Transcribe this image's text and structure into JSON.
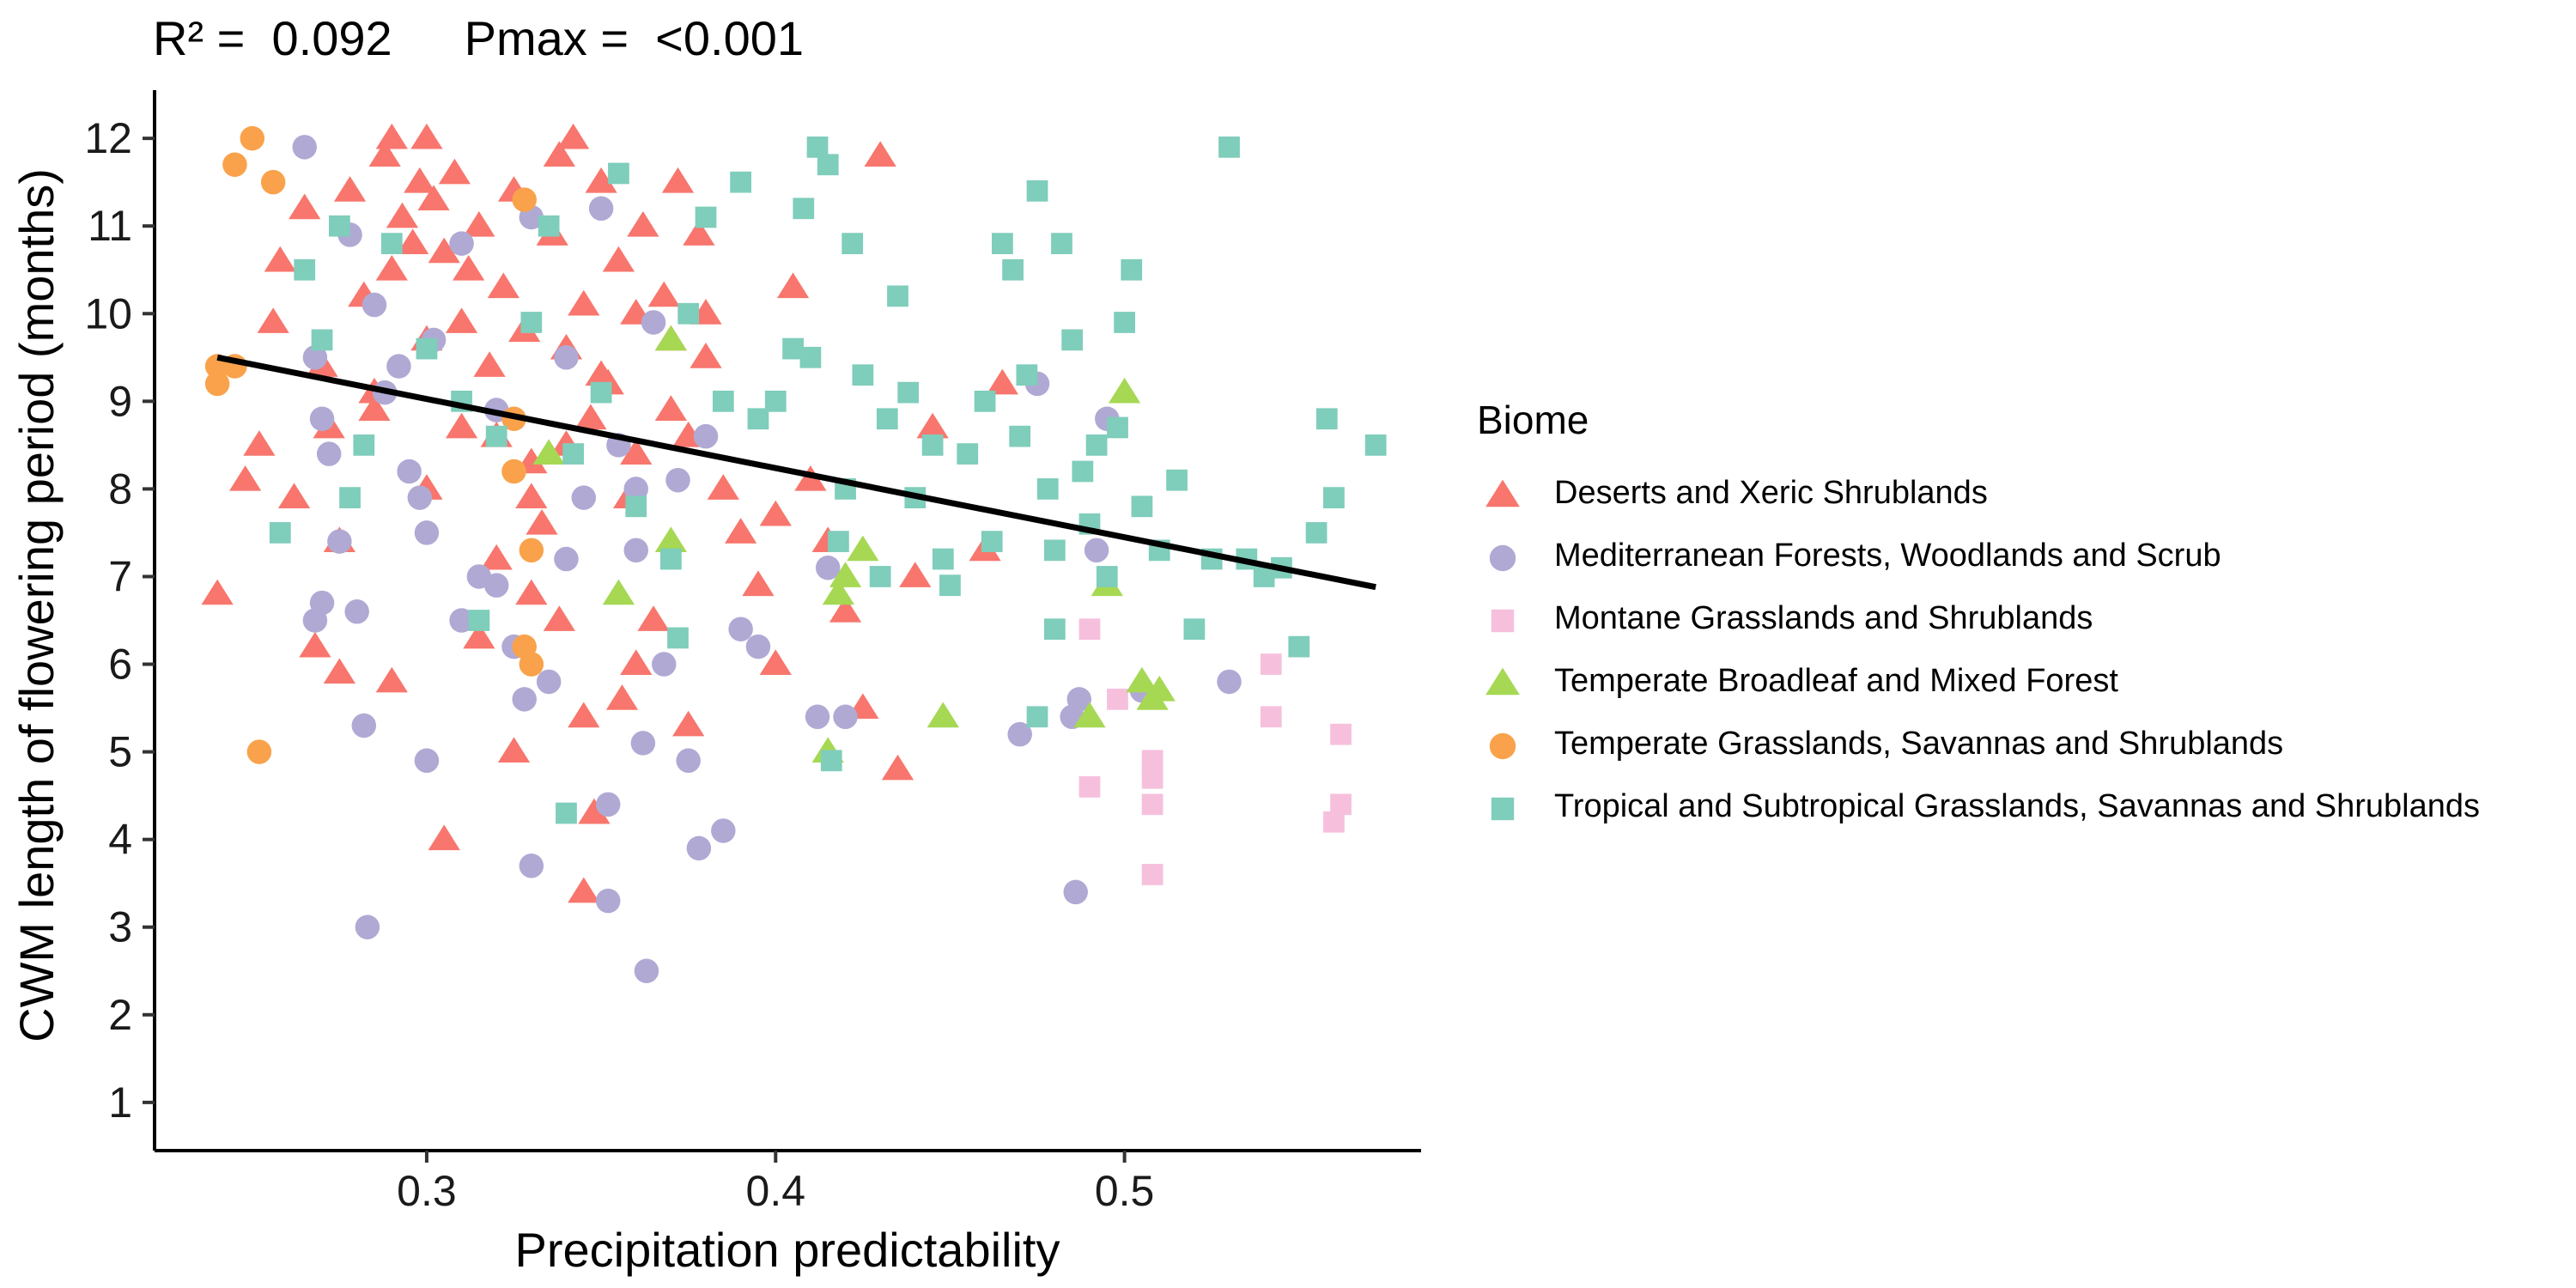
{
  "stats": {
    "r2_label": "R² =",
    "r2_value": "0.092",
    "pmax_label": "Pmax =",
    "pmax_value": "<0.001"
  },
  "chart_data": {
    "type": "scatter",
    "title": "",
    "xlabel": "Precipitation predictability",
    "ylabel": "CWM length of flowering period (months)",
    "xlim": [
      0.222,
      0.585
    ],
    "ylim": [
      0.45,
      12.55
    ],
    "x_ticks": [
      0.3,
      0.4,
      0.5
    ],
    "x_tick_labels": [
      "0.3",
      "0.4",
      "0.5"
    ],
    "y_ticks": [
      1,
      2,
      3,
      4,
      5,
      6,
      7,
      8,
      9,
      10,
      11,
      12
    ],
    "y_tick_labels": [
      "1",
      "2",
      "3",
      "4",
      "5",
      "6",
      "7",
      "8",
      "9",
      "10",
      "11",
      "12"
    ],
    "grid": false,
    "legend_title": "Biome",
    "legend_position": "right",
    "fit_line": {
      "x": [
        0.24,
        0.572
      ],
      "y": [
        9.5,
        6.88
      ],
      "color": "#000000"
    },
    "series": [
      {
        "name": "Deserts and Xeric Shrublands",
        "marker": "triangle",
        "color": "#F8766D",
        "points": [
          [
            0.24,
            6.8
          ],
          [
            0.248,
            8.1
          ],
          [
            0.252,
            8.5
          ],
          [
            0.256,
            9.9
          ],
          [
            0.258,
            10.6
          ],
          [
            0.262,
            7.9
          ],
          [
            0.265,
            11.2
          ],
          [
            0.27,
            9.4
          ],
          [
            0.272,
            8.7
          ],
          [
            0.275,
            7.4
          ],
          [
            0.278,
            11.4
          ],
          [
            0.282,
            10.2
          ],
          [
            0.285,
            9.1
          ],
          [
            0.288,
            11.8
          ],
          [
            0.29,
            12.0
          ],
          [
            0.293,
            11.1
          ],
          [
            0.296,
            10.8
          ],
          [
            0.298,
            11.5
          ],
          [
            0.3,
            12.0
          ],
          [
            0.302,
            11.3
          ],
          [
            0.305,
            10.7
          ],
          [
            0.308,
            11.6
          ],
          [
            0.31,
            9.9
          ],
          [
            0.312,
            10.5
          ],
          [
            0.315,
            11.0
          ],
          [
            0.318,
            9.4
          ],
          [
            0.32,
            8.6
          ],
          [
            0.322,
            10.3
          ],
          [
            0.325,
            11.4
          ],
          [
            0.328,
            9.8
          ],
          [
            0.33,
            8.3
          ],
          [
            0.333,
            7.6
          ],
          [
            0.336,
            10.9
          ],
          [
            0.338,
            11.8
          ],
          [
            0.34,
            9.6
          ],
          [
            0.342,
            12.0
          ],
          [
            0.345,
            10.1
          ],
          [
            0.347,
            8.8
          ],
          [
            0.35,
            11.5
          ],
          [
            0.352,
            9.2
          ],
          [
            0.355,
            10.6
          ],
          [
            0.358,
            7.9
          ],
          [
            0.36,
            8.4
          ],
          [
            0.362,
            11.0
          ],
          [
            0.365,
            6.5
          ],
          [
            0.368,
            10.2
          ],
          [
            0.37,
            9.7
          ],
          [
            0.372,
            11.5
          ],
          [
            0.375,
            8.6
          ],
          [
            0.378,
            10.9
          ],
          [
            0.38,
            9.5
          ],
          [
            0.385,
            8.0
          ],
          [
            0.39,
            7.5
          ],
          [
            0.395,
            6.9
          ],
          [
            0.4,
            7.7
          ],
          [
            0.405,
            10.3
          ],
          [
            0.41,
            8.1
          ],
          [
            0.415,
            7.4
          ],
          [
            0.42,
            6.6
          ],
          [
            0.425,
            5.5
          ],
          [
            0.43,
            11.8
          ],
          [
            0.435,
            4.8
          ],
          [
            0.44,
            7.0
          ],
          [
            0.445,
            8.7
          ],
          [
            0.46,
            7.3
          ],
          [
            0.465,
            9.2
          ],
          [
            0.268,
            6.2
          ],
          [
            0.275,
            5.9
          ],
          [
            0.29,
            5.8
          ],
          [
            0.305,
            4.0
          ],
          [
            0.315,
            6.3
          ],
          [
            0.325,
            5.0
          ],
          [
            0.33,
            6.8
          ],
          [
            0.338,
            6.5
          ],
          [
            0.345,
            5.4
          ],
          [
            0.348,
            4.3
          ],
          [
            0.356,
            5.6
          ],
          [
            0.36,
            6.0
          ],
          [
            0.375,
            5.3
          ],
          [
            0.345,
            3.4
          ],
          [
            0.4,
            6.0
          ],
          [
            0.285,
            8.9
          ],
          [
            0.3,
            8.0
          ],
          [
            0.31,
            8.7
          ],
          [
            0.32,
            7.2
          ],
          [
            0.33,
            7.9
          ],
          [
            0.34,
            8.5
          ],
          [
            0.35,
            9.3
          ],
          [
            0.36,
            10.0
          ],
          [
            0.37,
            8.9
          ],
          [
            0.38,
            10.0
          ],
          [
            0.29,
            10.5
          ],
          [
            0.3,
            9.7
          ]
        ]
      },
      {
        "name": "Mediterranean Forests, Woodlands and Scrub",
        "marker": "circle",
        "color": "#B0A9D4",
        "points": [
          [
            0.265,
            11.9
          ],
          [
            0.268,
            9.5
          ],
          [
            0.27,
            8.8
          ],
          [
            0.272,
            8.4
          ],
          [
            0.275,
            7.4
          ],
          [
            0.27,
            6.7
          ],
          [
            0.268,
            6.5
          ],
          [
            0.28,
            6.6
          ],
          [
            0.282,
            5.3
          ],
          [
            0.278,
            10.9
          ],
          [
            0.285,
            10.1
          ],
          [
            0.288,
            9.1
          ],
          [
            0.292,
            9.4
          ],
          [
            0.295,
            8.2
          ],
          [
            0.298,
            7.9
          ],
          [
            0.3,
            7.5
          ],
          [
            0.3,
            4.9
          ],
          [
            0.302,
            9.7
          ],
          [
            0.31,
            10.8
          ],
          [
            0.315,
            7.0
          ],
          [
            0.32,
            8.9
          ],
          [
            0.325,
            6.2
          ],
          [
            0.33,
            11.1
          ],
          [
            0.328,
            5.6
          ],
          [
            0.335,
            5.8
          ],
          [
            0.34,
            9.5
          ],
          [
            0.345,
            7.9
          ],
          [
            0.35,
            11.2
          ],
          [
            0.352,
            4.4
          ],
          [
            0.355,
            8.5
          ],
          [
            0.36,
            7.3
          ],
          [
            0.362,
            5.1
          ],
          [
            0.365,
            9.9
          ],
          [
            0.368,
            6.0
          ],
          [
            0.372,
            8.1
          ],
          [
            0.375,
            4.9
          ],
          [
            0.378,
            3.9
          ],
          [
            0.38,
            8.6
          ],
          [
            0.385,
            4.1
          ],
          [
            0.39,
            6.4
          ],
          [
            0.395,
            6.2
          ],
          [
            0.412,
            5.4
          ],
          [
            0.415,
            7.1
          ],
          [
            0.42,
            5.4
          ],
          [
            0.47,
            5.2
          ],
          [
            0.475,
            9.2
          ],
          [
            0.485,
            5.4
          ],
          [
            0.487,
            5.6
          ],
          [
            0.486,
            3.4
          ],
          [
            0.492,
            7.3
          ],
          [
            0.495,
            8.8
          ],
          [
            0.505,
            5.7
          ],
          [
            0.53,
            5.8
          ],
          [
            0.283,
            3.0
          ],
          [
            0.33,
            3.7
          ],
          [
            0.352,
            3.3
          ],
          [
            0.363,
            2.5
          ],
          [
            0.31,
            6.5
          ],
          [
            0.32,
            6.9
          ],
          [
            0.34,
            7.2
          ],
          [
            0.36,
            8.0
          ]
        ]
      },
      {
        "name": "Montane Grasslands and Shrublands",
        "marker": "square",
        "color": "#F6C0DD",
        "points": [
          [
            0.49,
            6.4
          ],
          [
            0.49,
            4.6
          ],
          [
            0.498,
            5.6
          ],
          [
            0.508,
            4.9
          ],
          [
            0.508,
            4.7
          ],
          [
            0.508,
            4.4
          ],
          [
            0.508,
            3.6
          ],
          [
            0.542,
            6.0
          ],
          [
            0.542,
            5.4
          ],
          [
            0.56,
            4.2
          ],
          [
            0.562,
            4.4
          ],
          [
            0.562,
            5.2
          ]
        ]
      },
      {
        "name": "Temperate Broadleaf and Mixed Forest",
        "marker": "triangle",
        "color": "#A6D854",
        "points": [
          [
            0.335,
            8.4
          ],
          [
            0.355,
            6.8
          ],
          [
            0.37,
            9.7
          ],
          [
            0.37,
            7.4
          ],
          [
            0.418,
            6.8
          ],
          [
            0.415,
            5.0
          ],
          [
            0.42,
            7.0
          ],
          [
            0.425,
            7.3
          ],
          [
            0.448,
            5.4
          ],
          [
            0.49,
            5.4
          ],
          [
            0.495,
            6.9
          ],
          [
            0.5,
            9.1
          ],
          [
            0.505,
            5.8
          ],
          [
            0.508,
            5.6
          ],
          [
            0.51,
            5.7
          ]
        ]
      },
      {
        "name": "Temperate Grasslands, Savannas and Shrublands",
        "marker": "circle",
        "color": "#F9A24B",
        "points": [
          [
            0.24,
            9.2
          ],
          [
            0.24,
            9.4
          ],
          [
            0.245,
            9.4
          ],
          [
            0.245,
            11.7
          ],
          [
            0.25,
            12.0
          ],
          [
            0.256,
            11.5
          ],
          [
            0.252,
            5.0
          ],
          [
            0.325,
            8.2
          ],
          [
            0.33,
            7.3
          ],
          [
            0.33,
            6.0
          ],
          [
            0.328,
            6.2
          ],
          [
            0.328,
            11.3
          ],
          [
            0.325,
            8.8
          ]
        ]
      },
      {
        "name": "Tropical and Subtropical Grasslands, Savannas and Shrublands",
        "marker": "square",
        "color": "#7FCDBB",
        "points": [
          [
            0.258,
            7.5
          ],
          [
            0.265,
            10.5
          ],
          [
            0.27,
            9.7
          ],
          [
            0.275,
            11.0
          ],
          [
            0.278,
            7.9
          ],
          [
            0.282,
            8.5
          ],
          [
            0.29,
            10.8
          ],
          [
            0.3,
            9.6
          ],
          [
            0.31,
            9.0
          ],
          [
            0.315,
            6.5
          ],
          [
            0.32,
            8.6
          ],
          [
            0.33,
            9.9
          ],
          [
            0.335,
            11.0
          ],
          [
            0.34,
            4.3
          ],
          [
            0.342,
            8.4
          ],
          [
            0.35,
            9.1
          ],
          [
            0.355,
            11.6
          ],
          [
            0.36,
            7.8
          ],
          [
            0.37,
            7.2
          ],
          [
            0.372,
            6.3
          ],
          [
            0.375,
            10.0
          ],
          [
            0.38,
            11.1
          ],
          [
            0.385,
            9.0
          ],
          [
            0.39,
            11.5
          ],
          [
            0.395,
            8.8
          ],
          [
            0.4,
            9.0
          ],
          [
            0.405,
            9.6
          ],
          [
            0.408,
            11.2
          ],
          [
            0.41,
            9.5
          ],
          [
            0.412,
            11.9
          ],
          [
            0.415,
            11.7
          ],
          [
            0.418,
            7.4
          ],
          [
            0.42,
            8.0
          ],
          [
            0.422,
            10.8
          ],
          [
            0.425,
            9.3
          ],
          [
            0.43,
            7.0
          ],
          [
            0.432,
            8.8
          ],
          [
            0.435,
            10.2
          ],
          [
            0.438,
            9.1
          ],
          [
            0.44,
            7.9
          ],
          [
            0.445,
            8.5
          ],
          [
            0.448,
            7.2
          ],
          [
            0.45,
            6.9
          ],
          [
            0.455,
            8.4
          ],
          [
            0.46,
            9.0
          ],
          [
            0.462,
            7.4
          ],
          [
            0.465,
            10.8
          ],
          [
            0.468,
            10.5
          ],
          [
            0.47,
            8.6
          ],
          [
            0.472,
            9.3
          ],
          [
            0.475,
            11.4
          ],
          [
            0.478,
            8.0
          ],
          [
            0.48,
            7.3
          ],
          [
            0.482,
            10.8
          ],
          [
            0.485,
            9.7
          ],
          [
            0.488,
            8.2
          ],
          [
            0.49,
            7.6
          ],
          [
            0.492,
            8.5
          ],
          [
            0.495,
            7.0
          ],
          [
            0.498,
            8.7
          ],
          [
            0.5,
            9.9
          ],
          [
            0.502,
            10.5
          ],
          [
            0.505,
            7.8
          ],
          [
            0.51,
            7.3
          ],
          [
            0.515,
            8.1
          ],
          [
            0.52,
            6.4
          ],
          [
            0.525,
            7.2
          ],
          [
            0.53,
            11.9
          ],
          [
            0.535,
            7.2
          ],
          [
            0.54,
            7.0
          ],
          [
            0.545,
            7.1
          ],
          [
            0.55,
            6.2
          ],
          [
            0.555,
            7.5
          ],
          [
            0.558,
            8.8
          ],
          [
            0.56,
            7.9
          ],
          [
            0.572,
            8.5
          ],
          [
            0.48,
            6.4
          ],
          [
            0.475,
            5.4
          ],
          [
            0.416,
            4.9
          ]
        ]
      }
    ]
  }
}
